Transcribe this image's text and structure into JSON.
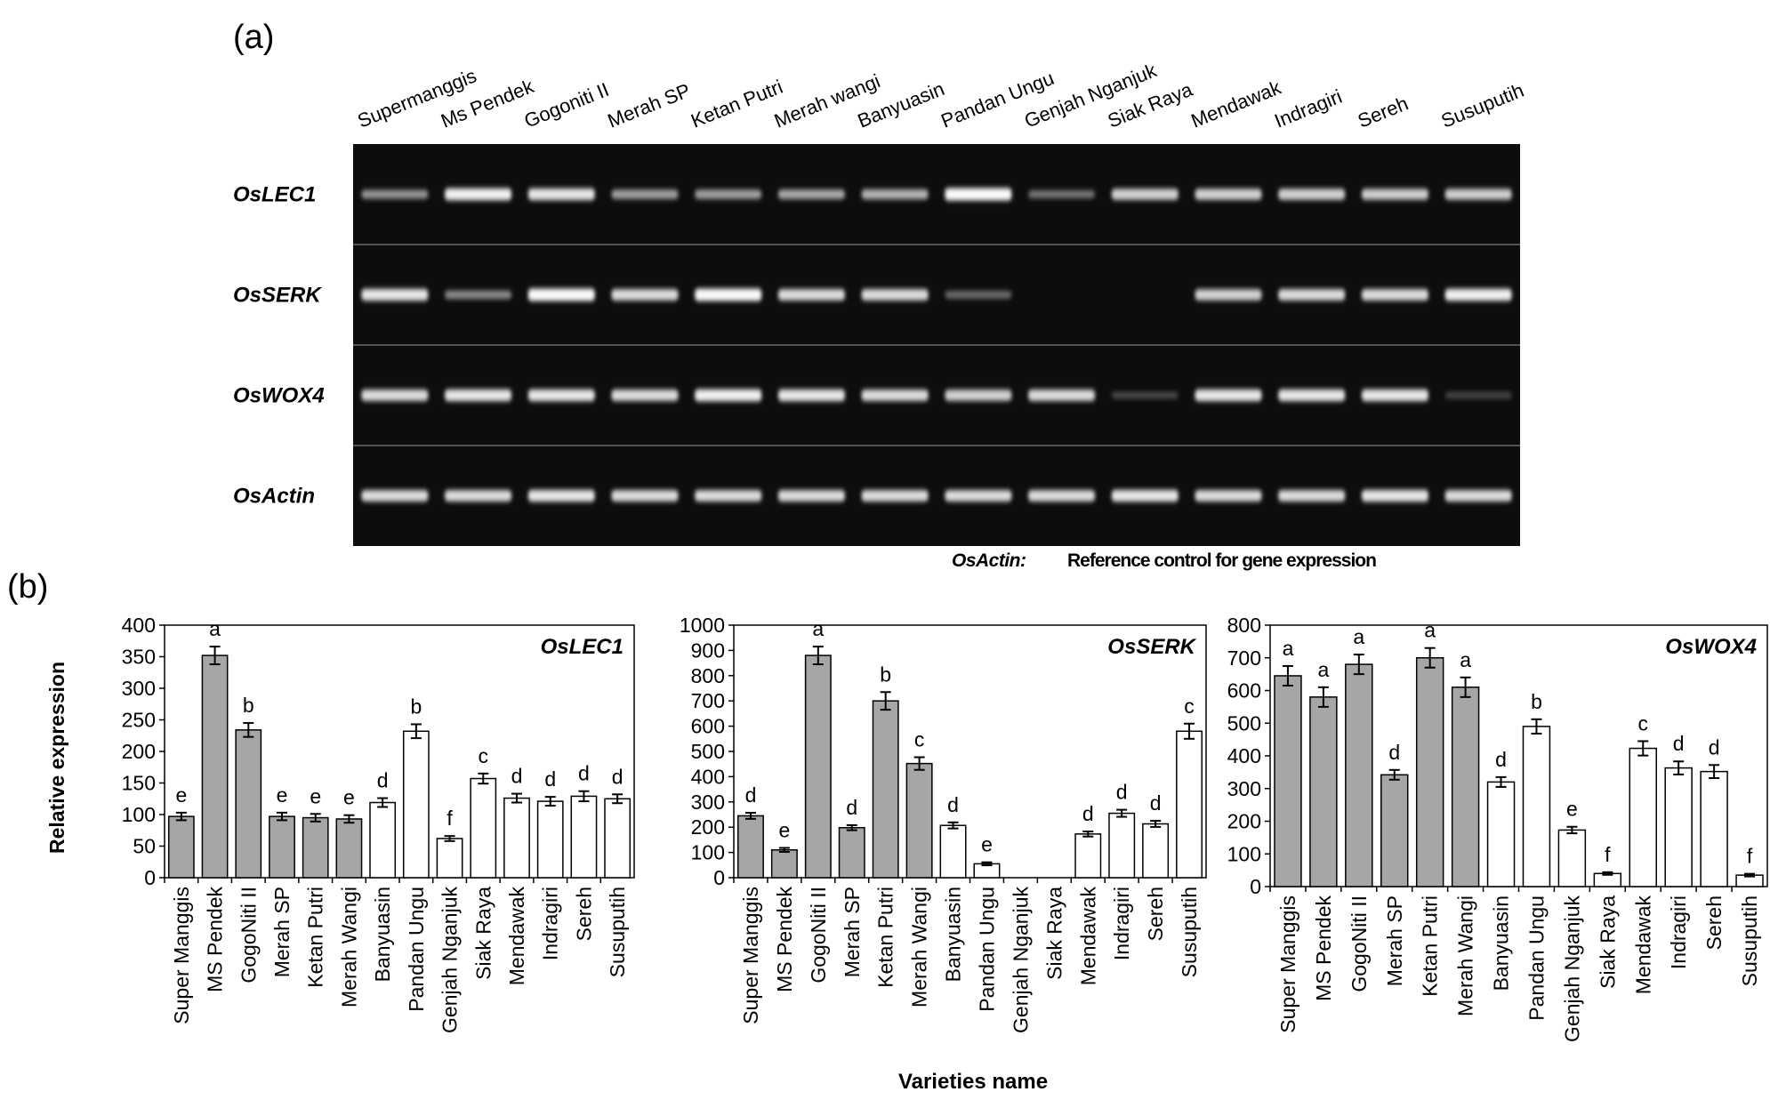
{
  "panel_a": {
    "label": "(a)",
    "lane_labels": [
      "Supermanggis",
      "Ms Pendek",
      "Gogoniti II",
      "Merah SP",
      "Ketan Putri",
      "Merah wangi",
      "Banyuasin",
      "Pandan Ungu",
      "Genjah Nganjuk",
      "Siak Raya",
      "Mendawak",
      "Indragiri",
      "Sereh",
      "Susuputih"
    ],
    "genes": [
      {
        "name": "OsLEC1",
        "intensity": [
          0.5,
          0.95,
          0.9,
          0.55,
          0.55,
          0.6,
          0.65,
          1.0,
          0.35,
          0.8,
          0.8,
          0.8,
          0.78,
          0.78
        ]
      },
      {
        "name": "OsSERK",
        "intensity": [
          0.9,
          0.45,
          1.0,
          0.85,
          1.0,
          0.85,
          0.85,
          0.3,
          0.0,
          0.0,
          0.8,
          0.85,
          0.85,
          0.95
        ]
      },
      {
        "name": "OsWOX4",
        "intensity": [
          0.85,
          0.9,
          0.9,
          0.85,
          0.95,
          0.9,
          0.85,
          0.8,
          0.85,
          0.15,
          0.9,
          0.9,
          0.9,
          0.12
        ]
      },
      {
        "name": "OsActin",
        "intensity": [
          0.85,
          0.85,
          0.9,
          0.85,
          0.85,
          0.85,
          0.85,
          0.85,
          0.85,
          0.9,
          0.85,
          0.85,
          0.9,
          0.85
        ]
      }
    ],
    "note_gene": "OsActin:",
    "note_text": "Reference control for gene expression"
  },
  "panel_b": {
    "label": "(b)",
    "ylabel": "Relative expression",
    "xlabel": "Varieties name"
  },
  "chart_data": [
    {
      "type": "bar",
      "title": "OsLEC1",
      "categories": [
        "Super Manggis",
        "MS Pendek",
        "GogoNiti II",
        "Merah SP",
        "Ketan Putri",
        "Merah Wangi",
        "Banyuasin",
        "Pandan Ungu",
        "Genjah Nganjuk",
        "Siak Raya",
        "Mendawak",
        "Indragiri",
        "Sereh",
        "Susuputih"
      ],
      "values": [
        97,
        352,
        234,
        97,
        95,
        93,
        119,
        232,
        62,
        157,
        126,
        121,
        129,
        125
      ],
      "errors": [
        6,
        14,
        11,
        6,
        6,
        6,
        7,
        11,
        4,
        8,
        7,
        7,
        8,
        7
      ],
      "letters": [
        "e",
        "a",
        "b",
        "e",
        "e",
        "e",
        "d",
        "b",
        "f",
        "c",
        "d",
        "d",
        "d",
        "d"
      ],
      "shaded": [
        true,
        true,
        true,
        true,
        true,
        true,
        false,
        false,
        false,
        false,
        false,
        false,
        false,
        false
      ],
      "ylim": [
        0,
        400
      ],
      "yticks": [
        0,
        50,
        100,
        150,
        200,
        250,
        300,
        350,
        400
      ],
      "grid": false
    },
    {
      "type": "bar",
      "title": "OsSERK",
      "categories": [
        "Super Manggis",
        "MS Pendek",
        "GogoNiti II",
        "Merah SP",
        "Ketan Putri",
        "Merah Wangi",
        "Banyuasin",
        "Pandan Ungu",
        "Genjah Nganjuk",
        "Siak Raya",
        "Mendawak",
        "Indragiri",
        "Sereh",
        "Susuputih"
      ],
      "values": [
        245,
        110,
        880,
        198,
        700,
        452,
        207,
        55,
        0,
        0,
        173,
        255,
        213,
        580
      ],
      "errors": [
        12,
        8,
        35,
        10,
        35,
        25,
        12,
        6,
        0,
        0,
        10,
        14,
        12,
        30
      ],
      "letters": [
        "d",
        "e",
        "a",
        "d",
        "b",
        "c",
        "d",
        "e",
        "",
        "",
        "d",
        "d",
        "d",
        "c"
      ],
      "shaded": [
        true,
        true,
        true,
        true,
        true,
        true,
        false,
        false,
        false,
        false,
        false,
        false,
        false,
        false
      ],
      "ylim": [
        0,
        1000
      ],
      "yticks": [
        0,
        100,
        200,
        300,
        400,
        500,
        600,
        700,
        800,
        900,
        1000
      ],
      "grid": false
    },
    {
      "type": "bar",
      "title": "OsWOX4",
      "categories": [
        "Super Manggis",
        "MS Pendek",
        "GogoNiti II",
        "Merah SP",
        "Ketan Putri",
        "Merah Wangi",
        "Banyuasin",
        "Pandan Ungu",
        "Genjah Nganjuk",
        "Siak Raya",
        "Mendawak",
        "Indragiri",
        "Sereh",
        "Susuputih"
      ],
      "values": [
        645,
        580,
        680,
        342,
        700,
        610,
        320,
        490,
        173,
        40,
        423,
        363,
        352,
        35
      ],
      "errors": [
        30,
        30,
        30,
        15,
        30,
        30,
        15,
        22,
        10,
        4,
        22,
        20,
        20,
        4
      ],
      "letters": [
        "a",
        "a",
        "a",
        "d",
        "a",
        "a",
        "d",
        "b",
        "e",
        "f",
        "c",
        "d",
        "d",
        "f"
      ],
      "shaded": [
        true,
        true,
        true,
        true,
        true,
        true,
        false,
        false,
        false,
        false,
        false,
        false,
        false,
        false
      ],
      "ylim": [
        0,
        800
      ],
      "yticks": [
        0,
        100,
        200,
        300,
        400,
        500,
        600,
        700,
        800
      ],
      "grid": false
    }
  ]
}
